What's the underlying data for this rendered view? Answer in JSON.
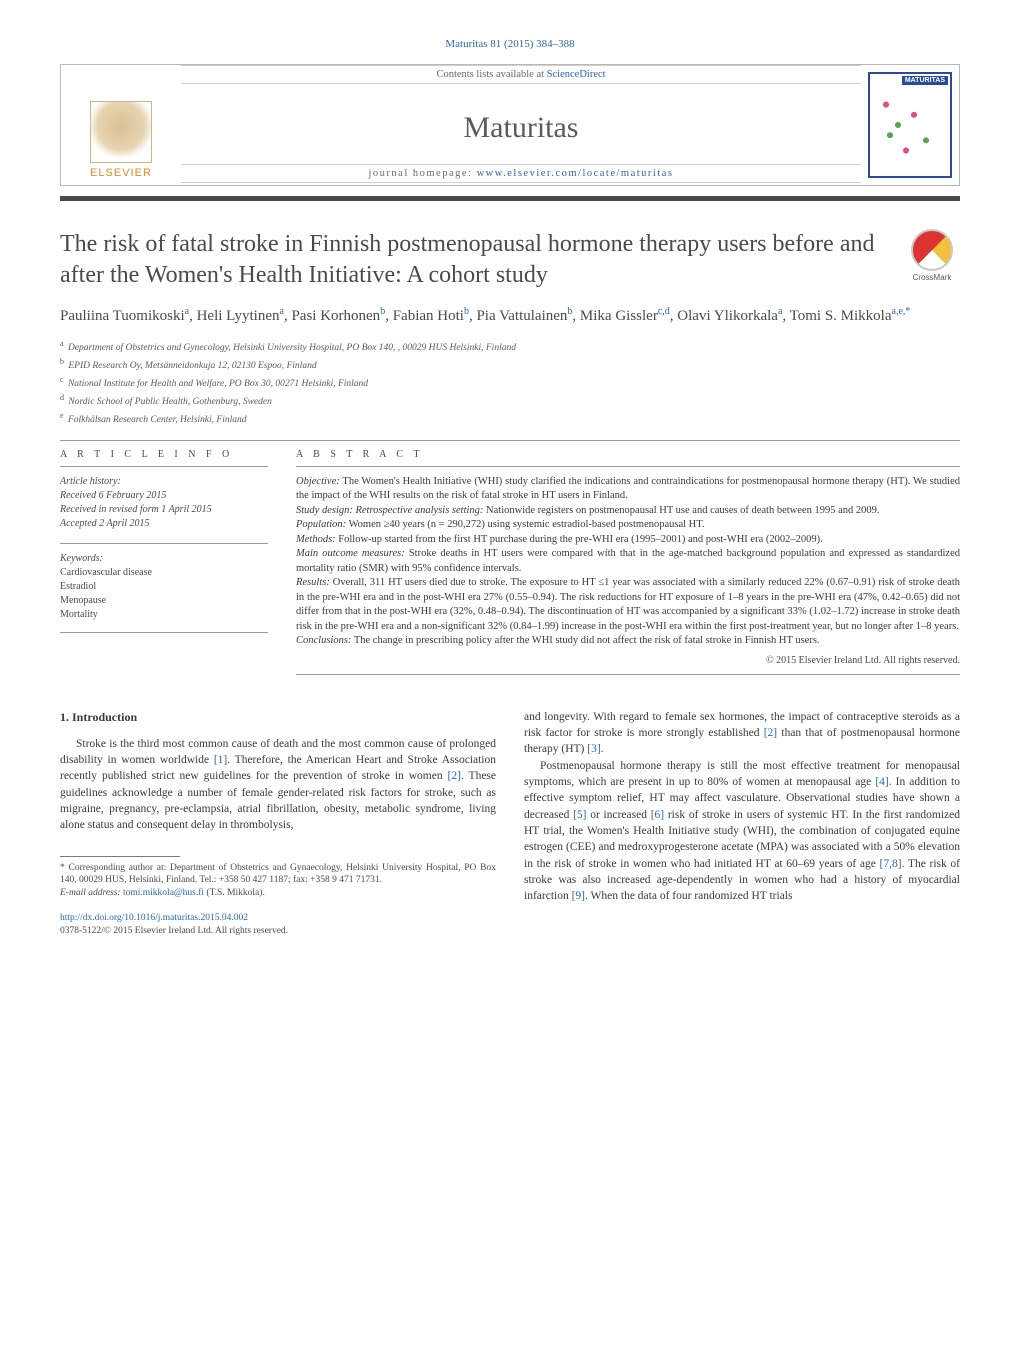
{
  "journal_ref": {
    "prefix": "Maturitas 81 (2015) 384–388"
  },
  "header": {
    "contents_prefix": "Contents lists available at ",
    "contents_link": "ScienceDirect",
    "journal_name": "Maturitas",
    "homepage_prefix": "journal homepage: ",
    "homepage_link": "www.elsevier.com/locate/maturitas",
    "publisher": "ELSEVIER",
    "cover_label": "MATURITAS"
  },
  "crossmark_label": "CrossMark",
  "title": "The risk of fatal stroke in Finnish postmenopausal hormone therapy users before and after the Women's Health Initiative: A cohort study",
  "authors_html": "Pauliina Tuomikoski<sup>a</sup>, Heli Lyytinen<sup>a</sup>, Pasi Korhonen<sup>b</sup>, Fabian Hoti<sup>b</sup>, Pia Vattulainen<sup>b</sup>, Mika Gissler<sup>c,d</sup>, Olavi Ylikorkala<sup>a</sup>, Tomi S. Mikkola<sup>a,e,*</sup>",
  "affiliations": [
    {
      "sup": "a",
      "text": "Department of Obstetrics and Gynecology, Helsinki University Hospital, PO Box 140, , 00029 HUS Helsinki, Finland"
    },
    {
      "sup": "b",
      "text": "EPID Research Oy, Metsänneidonkuja 12, 02130 Espoo, Finland"
    },
    {
      "sup": "c",
      "text": "National Institute for Health and Welfare, PO Box 30, 00271 Helsinki, Finland"
    },
    {
      "sup": "d",
      "text": "Nordic School of Public Health, Gothenburg, Sweden"
    },
    {
      "sup": "e",
      "text": "Folkhälsan Research Center, Helsinki, Finland"
    }
  ],
  "article_info_head": "A R T I C L E   I N F O",
  "abstract_head": "A B S T R A C T",
  "history": {
    "label": "Article history:",
    "received": "Received 6 February 2015",
    "revised": "Received in revised form 1 April 2015",
    "accepted": "Accepted 2 April 2015"
  },
  "keywords": {
    "label": "Keywords:",
    "items": [
      "Cardiovascular disease",
      "Estradiol",
      "Menopause",
      "Mortality"
    ]
  },
  "abstract": {
    "objective_label": "Objective:",
    "objective": " The Women's Health Initiative (WHI) study clarified the indications and contraindications for postmenopausal hormone therapy (HT). We studied the impact of the WHI results on the risk of fatal stroke in HT users in Finland.",
    "design_label": "Study design: Retrospective analysis setting:",
    "design": " Nationwide registers on postmenopausal HT use and causes of death between 1995 and 2009.",
    "population_label": "Population:",
    "population": " Women ≥40 years (n = 290,272) using systemic estradiol-based postmenopausal HT.",
    "methods_label": "Methods:",
    "methods": " Follow-up started from the first HT purchase during the pre-WHI era (1995–2001) and post-WHI era (2002–2009).",
    "outcomes_label": "Main outcome measures:",
    "outcomes": " Stroke deaths in HT users were compared with that in the age-matched background population and expressed as standardized mortality ratio (SMR) with 95% confidence intervals.",
    "results_label": "Results:",
    "results": " Overall, 311 HT users died due to stroke. The exposure to HT ≤1 year was associated with a similarly reduced 22% (0.67–0.91) risk of stroke death in the pre-WHI era and in the post-WHI era 27% (0.55–0.94). The risk reductions for HT exposure of 1–8 years in the pre-WHI era (47%, 0.42–0.65) did not differ from that in the post-WHI era (32%, 0.48–0.94). The discontinuation of HT was accompanied by a significant 33% (1.02–1.72) increase in stroke death risk in the pre-WHI era and a non-significant 32% (0.84–1.99) increase in the post-WHI era within the first post-treatment year, but no longer after 1–8 years.",
    "conclusions_label": "Conclusions:",
    "conclusions": " The change in prescribing policy after the WHI study did not affect the risk of fatal stroke in Finnish HT users.",
    "copyright": "© 2015 Elsevier Ireland Ltd. All rights reserved."
  },
  "intro": {
    "heading": "1. Introduction",
    "p1_a": "Stroke is the third most common cause of death and the most common cause of prolonged disability in women worldwide ",
    "c1": "[1]",
    "p1_b": ". Therefore, the American Heart and Stroke Association recently published strict new guidelines for the prevention of stroke in women ",
    "c2": "[2]",
    "p1_c": ". These guidelines acknowledge a number of female gender-related risk factors for stroke, such as migraine, pregnancy, pre-eclampsia, atrial fibrillation, obesity, metabolic syndrome, living alone status and consequent delay in thrombolysis,",
    "p2_a": "and longevity. With regard to female sex hormones, the impact of contraceptive steroids as a risk factor for stroke is more strongly established ",
    "c2b": "[2]",
    "p2_b": " than that of postmenopausal hormone therapy (HT) ",
    "c3": "[3]",
    "p2_c": ".",
    "p3_a": "Postmenopausal hormone therapy is still the most effective treatment for menopausal symptoms, which are present in up to 80% of women at menopausal age ",
    "c4": "[4]",
    "p3_b": ". In addition to effective symptom relief, HT may affect vasculature. Observational studies have shown a decreased ",
    "c5": "[5]",
    "p3_c": " or increased ",
    "c6": "[6]",
    "p3_d": " risk of stroke in users of systemic HT. In the first randomized HT trial, the Women's Health Initiative study (WHI), the combination of conjugated equine estrogen (CEE) and medroxyprogesterone acetate (MPA) was associated with a 50% elevation in the risk of stroke in women who had initiated HT at 60–69 years of age ",
    "c78": "[7,8]",
    "p3_e": ". The risk of stroke was also increased age-dependently in women who had a history of myocardial infarction ",
    "c9": "[9]",
    "p3_f": ". When the data of four randomized HT trials"
  },
  "footnotes": {
    "corr_label": "* ",
    "corr": "Corresponding author at: Department of Obstetrics and Gynaecology, Helsinki University Hospital, PO Box 140, 00029 HUS, Helsinki, Finland. Tel.: +358 50 427 1187; fax: +358 9 471 71731.",
    "email_label": "E-mail address: ",
    "email": "tomi.mikkola@hus.fi",
    "email_suffix": " (T.S. Mikkola)."
  },
  "doi": {
    "link": "http://dx.doi.org/10.1016/j.maturitas.2015.04.002",
    "issn": "0378-5122/© 2015 Elsevier Ireland Ltd. All rights reserved."
  },
  "colors": {
    "link": "#2a67b2",
    "text": "#3a3a3a",
    "rule": "#4a4a4a",
    "elsevier": "#e8892a"
  }
}
